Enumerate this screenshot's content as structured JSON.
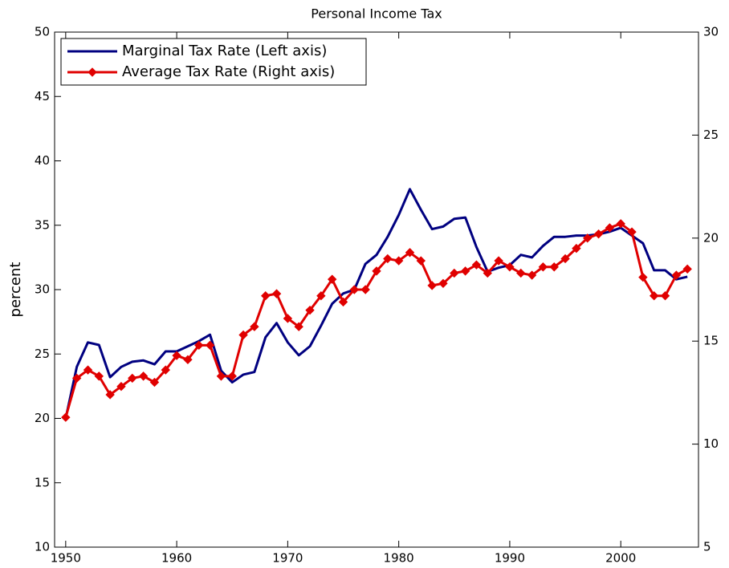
{
  "chart_data": {
    "type": "line",
    "title": "Personal Income Tax",
    "y_label": "percent",
    "x": [
      1950,
      1951,
      1952,
      1953,
      1954,
      1955,
      1956,
      1957,
      1958,
      1959,
      1960,
      1961,
      1962,
      1963,
      1964,
      1965,
      1966,
      1967,
      1968,
      1969,
      1970,
      1971,
      1972,
      1973,
      1974,
      1975,
      1976,
      1977,
      1978,
      1979,
      1980,
      1981,
      1982,
      1983,
      1984,
      1985,
      1986,
      1987,
      1988,
      1989,
      1990,
      1991,
      1992,
      1993,
      1994,
      1995,
      1996,
      1997,
      1998,
      1999,
      2000,
      2001,
      2002,
      2003,
      2004,
      2005,
      2006
    ],
    "xlim": [
      1949,
      2007
    ],
    "xticks": [
      1950,
      1960,
      1970,
      1980,
      1990,
      2000
    ],
    "ylim": [
      10,
      50
    ],
    "yticks": [
      10,
      15,
      20,
      25,
      30,
      35,
      40,
      45,
      50
    ],
    "y2lim": [
      5,
      30
    ],
    "y2ticks": [
      5,
      10,
      15,
      20,
      25,
      30
    ],
    "legend": "upper left",
    "grid": false,
    "series": [
      {
        "name": "Marginal Tax Rate (Left axis)",
        "color": "#000080",
        "axis": "y",
        "marker": "none",
        "values": [
          20,
          24,
          25.9,
          25.7,
          23.2,
          24,
          24.4,
          24.5,
          24.2,
          25.2,
          25.2,
          25.6,
          26,
          26.5,
          23.7,
          22.8,
          23.4,
          23.6,
          26.3,
          27.4,
          25.9,
          24.9,
          25.6,
          27.2,
          28.9,
          29.7,
          30,
          32,
          32.7,
          34.1,
          35.8,
          37.8,
          36.2,
          34.7,
          34.9,
          35.5,
          35.6,
          33.3,
          31.4,
          31.7,
          31.9,
          32.7,
          32.5,
          33.4,
          34.1,
          34.1,
          34.2,
          34.2,
          34.3,
          34.5,
          34.8,
          34.2,
          33.6,
          31.5,
          31.5,
          30.8,
          31
        ]
      },
      {
        "name": "Average Tax Rate (Right axis)",
        "color": "#e00000",
        "axis": "y2",
        "marker": "diamond",
        "values": [
          11.3,
          13.2,
          13.6,
          13.3,
          12.4,
          12.8,
          13.2,
          13.3,
          13,
          13.6,
          14.3,
          14.1,
          14.8,
          14.8,
          13.3,
          13.3,
          15.3,
          15.7,
          17.2,
          17.3,
          16.1,
          15.7,
          16.5,
          17.2,
          18,
          16.9,
          17.5,
          17.5,
          18.4,
          19,
          18.9,
          19.3,
          18.9,
          17.7,
          17.8,
          18.3,
          18.4,
          18.7,
          18.3,
          18.9,
          18.6,
          18.3,
          18.2,
          18.6,
          18.6,
          19,
          19.5,
          20,
          20.2,
          20.5,
          20.7,
          20.3,
          18.1,
          17.2,
          17.2,
          18.2,
          18.5
        ]
      }
    ]
  }
}
